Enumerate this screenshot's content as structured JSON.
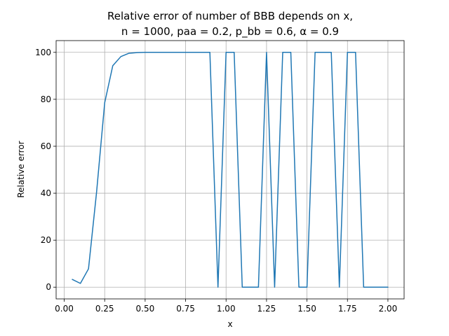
{
  "chart_data": {
    "type": "line",
    "title_line1": "Relative error of number of BBB depends on x,",
    "title_line2": "n = 1000, paa = 0.2, p_bb = 0.6, α = 0.9",
    "xlabel": "x",
    "ylabel": "Relative error",
    "xlim": [
      -0.05,
      2.1
    ],
    "ylim": [
      -5,
      105
    ],
    "grid": true,
    "x_ticks": [
      0.0,
      0.25,
      0.5,
      0.75,
      1.0,
      1.25,
      1.5,
      1.75,
      2.0
    ],
    "x_tick_labels": [
      "0.00",
      "0.25",
      "0.50",
      "0.75",
      "1.00",
      "1.25",
      "1.50",
      "1.75",
      "2.00"
    ],
    "y_ticks": [
      0,
      20,
      40,
      60,
      80,
      100
    ],
    "y_tick_labels": [
      "0",
      "20",
      "40",
      "60",
      "80",
      "100"
    ],
    "series": [
      {
        "color": "#1f77b4",
        "x": [
          0.05,
          0.1,
          0.15,
          0.2,
          0.25,
          0.3,
          0.35,
          0.4,
          0.45,
          0.5,
          0.55,
          0.6,
          0.65,
          0.7,
          0.75,
          0.8,
          0.85,
          0.9,
          0.95,
          1.0,
          1.05,
          1.1,
          1.15,
          1.2,
          1.25,
          1.3,
          1.35,
          1.4,
          1.45,
          1.5,
          1.55,
          1.6,
          1.65,
          1.7,
          1.75,
          1.8,
          1.85,
          1.9,
          1.95,
          2.0
        ],
        "y": [
          3.3,
          1.6,
          7.8,
          40.5,
          78.5,
          94.3,
          98.2,
          99.6,
          99.9,
          100,
          100,
          100,
          100,
          100,
          100,
          100,
          100,
          100,
          0,
          100,
          100,
          0,
          0,
          0,
          100,
          0,
          100,
          100,
          0,
          0,
          100,
          100,
          100,
          0,
          100,
          100,
          0,
          0,
          0,
          0
        ]
      }
    ]
  }
}
